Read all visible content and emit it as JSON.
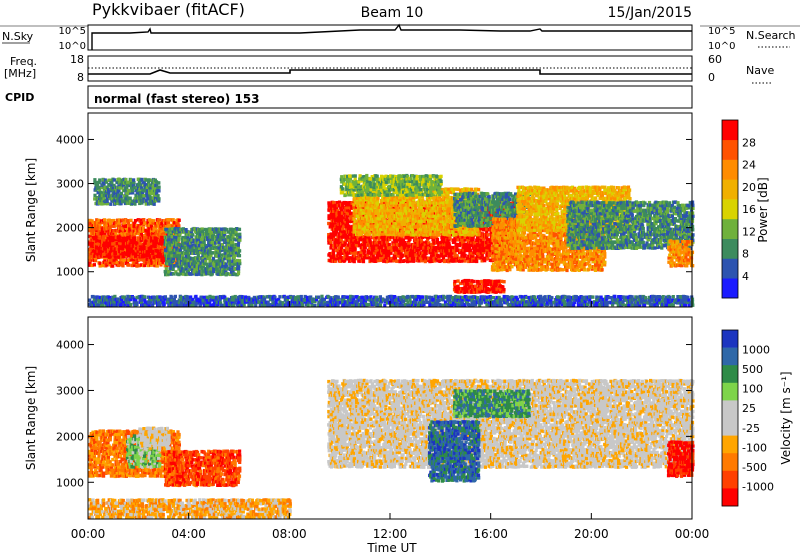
{
  "header": {
    "radar": "Pykkvibaer (fitACF)",
    "beam": "Beam 10",
    "date": "15/Jan/2015"
  },
  "top_panel_labels": {
    "nsky": "N.Sky",
    "nsearch": "N.Search",
    "freq": "Freq.",
    "freq_unit": "[MHz]",
    "nave": "Nave",
    "cpid": "CPID",
    "cpid_text": "normal (fast stereo) 153",
    "noise_ticks": [
      "10^5",
      "10^0"
    ],
    "noise_ticks_right": [
      "10^5",
      "10^0"
    ],
    "freq_ticks": [
      "18",
      "8"
    ],
    "nave_ticks": [
      "60",
      "0"
    ]
  },
  "colors": {
    "power_scale": [
      "#1b1bff",
      "#2d54b0",
      "#3d8b5e",
      "#6fb13c",
      "#d9d300",
      "#f0b000",
      "#ff8c00",
      "#ff5200",
      "#ff0000"
    ],
    "velocity_scale": [
      "#1c35c0",
      "#2f68a8",
      "#2e8b47",
      "#7ed44a",
      "#c8c8c8",
      "#c8c8c8",
      "#ffa500",
      "#ff7a00",
      "#ff4000",
      "#ff0000"
    ],
    "ground_scatter": "#c4c4c4"
  },
  "chart_data": [
    {
      "type": "heatmap",
      "name": "power",
      "ylabel": "Slant Range [km]",
      "yticks": [
        "1000",
        "2000",
        "3000",
        "4000"
      ],
      "ylim": [
        200,
        4600
      ],
      "xlim": [
        0,
        24
      ],
      "colorbar_label": "Power [dB]",
      "colorbar_ticks": [
        "4",
        "8",
        "12",
        "16",
        "20",
        "24",
        "28"
      ],
      "regions": [
        {
          "t0": 0.0,
          "t1": 3.6,
          "r0": 1100,
          "r1": 2200,
          "level": 7
        },
        {
          "t0": 0.0,
          "t1": 3.0,
          "r0": 1300,
          "r1": 1800,
          "level": 8
        },
        {
          "t0": 0.2,
          "t1": 2.8,
          "r0": 2500,
          "r1": 3100,
          "level": 2
        },
        {
          "t0": 3.0,
          "t1": 6.0,
          "r0": 900,
          "r1": 2000,
          "level": 2
        },
        {
          "t0": 9.5,
          "t1": 17.0,
          "r0": 1200,
          "r1": 2600,
          "level": 8
        },
        {
          "t0": 10.5,
          "t1": 15.5,
          "r0": 1800,
          "r1": 2900,
          "level": 5
        },
        {
          "t0": 10.0,
          "t1": 14.0,
          "r0": 2700,
          "r1": 3200,
          "level": 3
        },
        {
          "t0": 14.5,
          "t1": 17.5,
          "r0": 2000,
          "r1": 2800,
          "level": 2
        },
        {
          "t0": 16.0,
          "t1": 20.5,
          "r0": 1000,
          "r1": 2200,
          "level": 6
        },
        {
          "t0": 17.0,
          "t1": 21.5,
          "r0": 1900,
          "r1": 2900,
          "level": 5
        },
        {
          "t0": 19.0,
          "t1": 24.0,
          "r0": 1500,
          "r1": 2600,
          "level": 2
        },
        {
          "t0": 23.0,
          "t1": 24.0,
          "r0": 1100,
          "r1": 1700,
          "level": 6
        },
        {
          "t0": 14.5,
          "t1": 16.5,
          "r0": 500,
          "r1": 800,
          "level": 8
        },
        {
          "t0": 0.0,
          "t1": 24.0,
          "r0": 200,
          "r1": 450,
          "level": 1
        }
      ]
    },
    {
      "type": "heatmap",
      "name": "velocity",
      "ylabel": "Slant Range [km]",
      "yticks": [
        "1000",
        "2000",
        "3000",
        "4000"
      ],
      "ylim": [
        200,
        4600
      ],
      "xlim": [
        0,
        24
      ],
      "xticks": [
        "00:00",
        "04:00",
        "08:00",
        "12:00",
        "16:00",
        "20:00",
        "00:00"
      ],
      "xlabel": "Time UT",
      "colorbar_label": "Velocity [m s⁻¹]",
      "colorbar_ticks": [
        "1000",
        "500",
        "100",
        "25",
        "-25",
        "-100",
        "-500",
        "-1000"
      ],
      "regions": [
        {
          "t0": 0.0,
          "t1": 3.6,
          "r0": 1100,
          "r1": 2100,
          "level": 7
        },
        {
          "t0": 1.5,
          "t1": 2.8,
          "r0": 1300,
          "r1": 2000,
          "level": 3
        },
        {
          "t0": 2.0,
          "t1": 3.2,
          "r0": 1700,
          "r1": 2200,
          "level": 5
        },
        {
          "t0": 3.0,
          "t1": 6.0,
          "r0": 900,
          "r1": 1700,
          "level": 8
        },
        {
          "t0": 9.5,
          "t1": 24.0,
          "r0": 1300,
          "r1": 3200,
          "level": 5
        },
        {
          "t0": 13.5,
          "t1": 15.5,
          "r0": 1000,
          "r1": 2300,
          "level": 1
        },
        {
          "t0": 14.5,
          "t1": 17.5,
          "r0": 2400,
          "r1": 3000,
          "level": 2
        },
        {
          "t0": 23.0,
          "t1": 24.0,
          "r0": 1100,
          "r1": 1900,
          "level": 9
        },
        {
          "t0": 0.0,
          "t1": 8.0,
          "r0": 200,
          "r1": 600,
          "level": 6
        }
      ]
    }
  ]
}
